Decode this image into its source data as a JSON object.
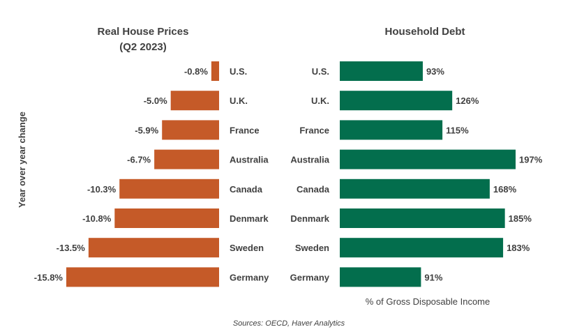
{
  "chart_data": [
    {
      "type": "bar",
      "orientation": "horizontal",
      "title_line1": "Real House Prices",
      "title_line2": "(Q2 2023)",
      "ylabel": "Year over year change",
      "categories": [
        "U.S.",
        "U.K.",
        "France",
        "Australia",
        "Canada",
        "Denmark",
        "Sweden",
        "Germany"
      ],
      "values": [
        -0.8,
        -5.0,
        -5.9,
        -6.7,
        -10.3,
        -10.8,
        -13.5,
        -15.8
      ],
      "value_labels": [
        "-0.8%",
        "-5.0%",
        "-5.9%",
        "-6.7%",
        "-10.3%",
        "-10.8%",
        "-13.5%",
        "-15.8%"
      ],
      "xlim": [
        -15.8,
        0
      ],
      "color": "#C55A28"
    },
    {
      "type": "bar",
      "orientation": "horizontal",
      "title": "Household Debt",
      "xlabel": "% of Gross Disposable Income",
      "categories": [
        "U.S.",
        "U.K.",
        "France",
        "Australia",
        "Canada",
        "Denmark",
        "Sweden",
        "Germany"
      ],
      "values": [
        93,
        126,
        115,
        197,
        168,
        185,
        183,
        91
      ],
      "value_labels": [
        "93%",
        "126%",
        "115%",
        "197%",
        "168%",
        "185%",
        "183%",
        "91%"
      ],
      "xlim": [
        0,
        197
      ],
      "color": "#036E4D"
    }
  ],
  "source": "Sources: OECD, Haver Analytics"
}
